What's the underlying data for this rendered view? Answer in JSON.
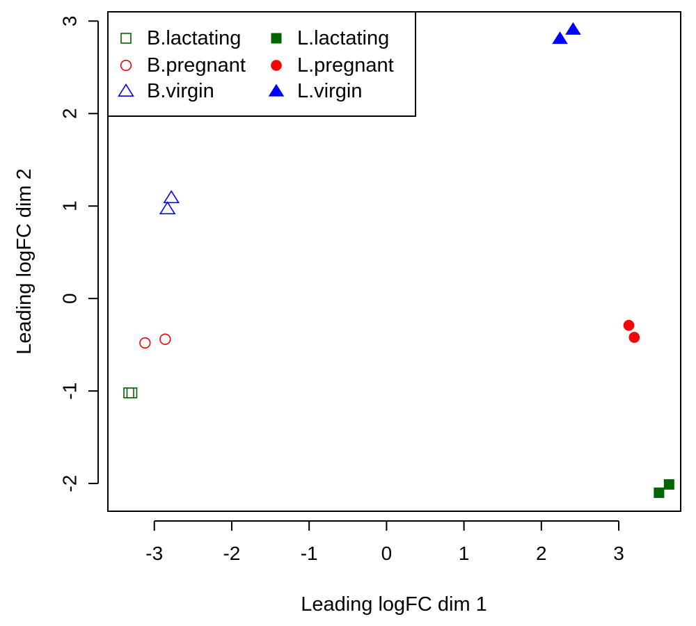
{
  "chart_data": {
    "type": "scatter",
    "xlabel": "Leading logFC dim 1",
    "ylabel": "Leading logFC dim 2",
    "xlim": [
      -3.6,
      3.8
    ],
    "ylim": [
      -2.3,
      3.1
    ],
    "xticks": [
      -3,
      -2,
      -1,
      0,
      1,
      2,
      3
    ],
    "yticks": [
      -2,
      -1,
      0,
      1,
      2,
      3
    ],
    "grid": false,
    "legend_position": "top-left",
    "series": [
      {
        "name": "B.lactating",
        "color": "#006400",
        "marker": "square-open",
        "points": [
          {
            "x": -3.33,
            "y": -1.02
          },
          {
            "x": -3.29,
            "y": -1.02
          }
        ]
      },
      {
        "name": "L.lactating",
        "color": "#006400",
        "marker": "square-filled",
        "points": [
          {
            "x": 3.52,
            "y": -2.1
          },
          {
            "x": 3.65,
            "y": -2.01
          }
        ]
      },
      {
        "name": "B.pregnant",
        "color": "#ff0000",
        "marker": "circle-open",
        "points": [
          {
            "x": -3.12,
            "y": -0.48
          },
          {
            "x": -2.86,
            "y": -0.44
          }
        ]
      },
      {
        "name": "L.pregnant",
        "color": "#ff0000",
        "marker": "circle-filled",
        "points": [
          {
            "x": 3.13,
            "y": -0.29
          },
          {
            "x": 3.2,
            "y": -0.42
          }
        ]
      },
      {
        "name": "B.virgin",
        "color": "#0000ff",
        "marker": "triangle-open",
        "points": [
          {
            "x": -2.83,
            "y": 0.97
          },
          {
            "x": -2.78,
            "y": 1.09
          }
        ]
      },
      {
        "name": "L.virgin",
        "color": "#0000ff",
        "marker": "triangle-filled",
        "points": [
          {
            "x": 2.24,
            "y": 2.81
          },
          {
            "x": 2.41,
            "y": 2.91
          }
        ]
      }
    ],
    "legend": [
      {
        "series": "B.lactating",
        "label": "B.lactating"
      },
      {
        "series": "B.pregnant",
        "label": "B.pregnant"
      },
      {
        "series": "B.virgin",
        "label": "B.virgin"
      },
      {
        "series": "L.lactating",
        "label": "L.lactating"
      },
      {
        "series": "L.pregnant",
        "label": "L.pregnant"
      },
      {
        "series": "L.virgin",
        "label": "L.virgin"
      }
    ]
  }
}
